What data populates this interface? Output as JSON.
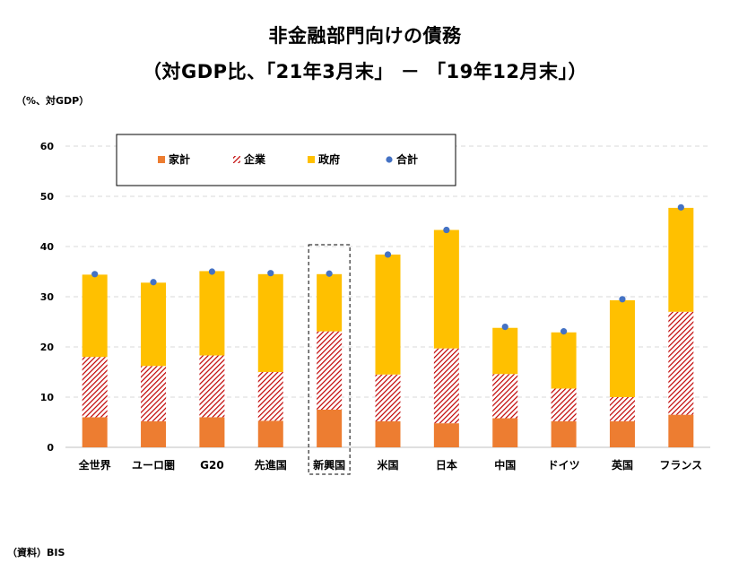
{
  "title": {
    "line1": "非金融部門向けの債務",
    "line2": "（対GDP比、「21年3月末」 － 「19年12月末」）"
  },
  "unit_label": "（%、対GDP）",
  "source_label": "（資料）BIS",
  "colors": {
    "household": "#ED7D31",
    "corporate": "#C00000",
    "government": "#FFC000",
    "total": "#4472C4",
    "grid": "#D9D9D9"
  },
  "chart_data": {
    "type": "bar",
    "stacked": true,
    "highlighted_category": "新興国",
    "categories": [
      "全世界",
      "ユーロ圏",
      "G20",
      "先進国",
      "新興国",
      "米国",
      "日本",
      "中国",
      "ドイツ",
      "英国",
      "フランス"
    ],
    "series": [
      {
        "name": "家計",
        "values": [
          6.0,
          5.2,
          6.0,
          5.3,
          7.5,
          5.2,
          4.8,
          5.8,
          5.2,
          5.2,
          6.5
        ]
      },
      {
        "name": "企業",
        "values": [
          12.0,
          11.0,
          12.3,
          9.7,
          15.6,
          9.3,
          14.9,
          8.8,
          6.5,
          4.8,
          20.5
        ]
      },
      {
        "name": "政府",
        "values": [
          16.4,
          16.6,
          16.8,
          19.5,
          11.4,
          23.9,
          23.6,
          9.2,
          11.2,
          19.3,
          20.7
        ]
      }
    ],
    "total": {
      "name": "合計",
      "values": [
        34.5,
        32.9,
        35.0,
        34.7,
        34.6,
        38.4,
        43.3,
        24.0,
        23.1,
        29.5,
        47.8
      ]
    },
    "ylim": [
      0,
      60
    ],
    "yticks": [
      0,
      10,
      20,
      30,
      40,
      50,
      60
    ],
    "grid": true,
    "legend_position": "top-left",
    "legend": [
      "家計",
      "企業",
      "政府",
      "合計"
    ]
  }
}
